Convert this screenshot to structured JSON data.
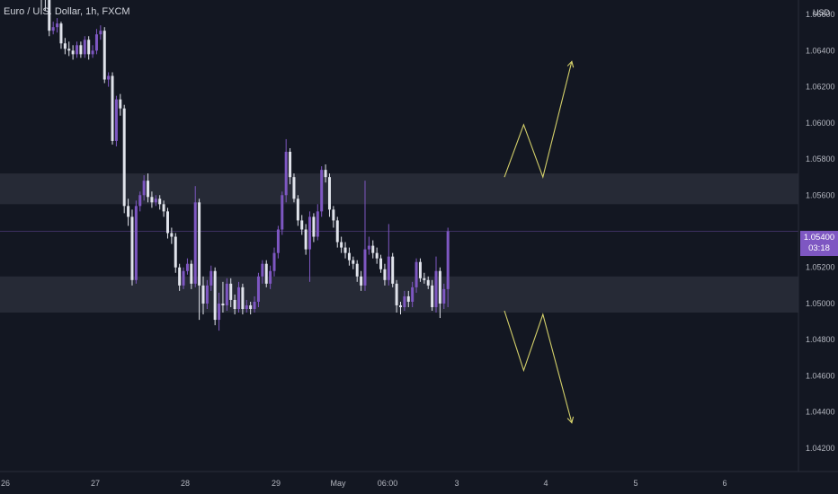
{
  "header": {
    "title": "Euro / U.S. Dollar, 1h, FXCM",
    "currency": "USD"
  },
  "colors": {
    "background": "#131722",
    "bull": "#7e57c2",
    "bear": "#e0e3eb",
    "zone": "#2a2e39",
    "projection": "#d4d06a",
    "axis_text": "#b2b5be"
  },
  "chart_data": {
    "type": "candlestick",
    "y_axis": {
      "ylim": [
        1.041,
        1.067
      ],
      "ticks": [
        "1.06600",
        "1.06400",
        "1.06200",
        "1.06000",
        "1.05800",
        "1.05600",
        "1.05200",
        "1.05000",
        "1.04800",
        "1.04600",
        "1.04400",
        "1.04200"
      ]
    },
    "x_axis": {
      "ticks": [
        "26",
        "27",
        "28",
        "29",
        "May",
        "06:00",
        "3",
        "4",
        "5",
        "6"
      ]
    },
    "current_price": {
      "value": "1.05400",
      "countdown": "03:18"
    },
    "zones": [
      {
        "top": 1.0572,
        "bottom": 1.0555
      },
      {
        "top": 1.0515,
        "bottom": 1.0495
      }
    ],
    "projections": [
      {
        "direction": "up",
        "points": [
          [
            0,
            1.057
          ],
          [
            4,
            1.0599
          ],
          [
            8,
            1.057
          ],
          [
            14,
            1.0634
          ]
        ]
      },
      {
        "direction": "down",
        "points": [
          [
            0,
            1.0496
          ],
          [
            4,
            1.0463
          ],
          [
            8,
            1.0494
          ],
          [
            14,
            1.0434
          ]
        ]
      }
    ],
    "candles": [
      [
        1.0671,
        1.0669,
        1.0675,
        1.066
      ],
      [
        1.0669,
        1.0668,
        1.0672,
        1.0662
      ],
      [
        1.0668,
        1.0651,
        1.067,
        1.0648
      ],
      [
        1.0651,
        1.0653,
        1.0656,
        1.0649
      ],
      [
        1.0653,
        1.0655,
        1.0658,
        1.065
      ],
      [
        1.0655,
        1.0644,
        1.0656,
        1.0641
      ],
      [
        1.0644,
        1.0641,
        1.0647,
        1.0638
      ],
      [
        1.0641,
        1.064,
        1.0645,
        1.0637
      ],
      [
        1.064,
        1.0638,
        1.0643,
        1.0635
      ],
      [
        1.0638,
        1.0643,
        1.0645,
        1.0636
      ],
      [
        1.0643,
        1.0638,
        1.0645,
        1.0636
      ],
      [
        1.0638,
        1.0646,
        1.0648,
        1.0636
      ],
      [
        1.0646,
        1.0638,
        1.0648,
        1.0635
      ],
      [
        1.0638,
        1.064,
        1.0643,
        1.0636
      ],
      [
        1.064,
        1.0649,
        1.0652,
        1.0638
      ],
      [
        1.0649,
        1.0651,
        1.0654,
        1.0646
      ],
      [
        1.0651,
        1.0624,
        1.0653,
        1.0622
      ],
      [
        1.0624,
        1.0626,
        1.0628,
        1.062
      ],
      [
        1.0626,
        1.059,
        1.0628,
        1.0588
      ],
      [
        1.059,
        1.0613,
        1.0615,
        1.0587
      ],
      [
        1.0613,
        1.0608,
        1.0616,
        1.0604
      ],
      [
        1.0608,
        1.0554,
        1.061,
        1.055
      ],
      [
        1.0554,
        1.0548,
        1.0558,
        1.0543
      ],
      [
        1.0548,
        1.0513,
        1.0552,
        1.051
      ],
      [
        1.0513,
        1.0554,
        1.0557,
        1.0511
      ],
      [
        1.0554,
        1.056,
        1.0562,
        1.0551
      ],
      [
        1.056,
        1.0568,
        1.0571,
        1.0557
      ],
      [
        1.0568,
        1.0559,
        1.0572,
        1.0556
      ],
      [
        1.0559,
        1.0556,
        1.0562,
        1.0553
      ],
      [
        1.0556,
        1.0558,
        1.056,
        1.0554
      ],
      [
        1.0558,
        1.0555,
        1.056,
        1.0552
      ],
      [
        1.0555,
        1.0551,
        1.0557,
        1.0548
      ],
      [
        1.0551,
        1.0539,
        1.0553,
        1.0536
      ],
      [
        1.0539,
        1.0537,
        1.0542,
        1.0533
      ],
      [
        1.0537,
        1.052,
        1.0539,
        1.0517
      ],
      [
        1.052,
        1.051,
        1.0522,
        1.0507
      ],
      [
        1.051,
        1.0518,
        1.052,
        1.0508
      ],
      [
        1.0518,
        1.0522,
        1.0525,
        1.0516
      ],
      [
        1.0522,
        1.0511,
        1.0524,
        1.0508
      ],
      [
        1.0511,
        1.0556,
        1.0565,
        1.0509
      ],
      [
        1.0556,
        1.051,
        1.0558,
        1.0491
      ],
      [
        1.051,
        1.05,
        1.0515,
        1.0494
      ],
      [
        1.05,
        1.051,
        1.0513,
        1.0497
      ],
      [
        1.051,
        1.0518,
        1.0521,
        1.0507
      ],
      [
        1.0518,
        1.0491,
        1.052,
        1.0488
      ],
      [
        1.0491,
        1.05,
        1.0506,
        1.0485
      ],
      [
        1.05,
        1.0499,
        1.0512,
        1.0495
      ],
      [
        1.0499,
        1.0511,
        1.0514,
        1.0496
      ],
      [
        1.0511,
        1.0502,
        1.0514,
        1.0498
      ],
      [
        1.0502,
        1.0497,
        1.0505,
        1.0494
      ],
      [
        1.0497,
        1.0509,
        1.0512,
        1.0495
      ],
      [
        1.0509,
        1.0497,
        1.0511,
        1.0494
      ],
      [
        1.0497,
        1.0499,
        1.0502,
        1.0495
      ],
      [
        1.0499,
        1.0497,
        1.0501,
        1.0494
      ],
      [
        1.0497,
        1.0501,
        1.0504,
        1.0495
      ],
      [
        1.0501,
        1.0515,
        1.0517,
        1.0498
      ],
      [
        1.0515,
        1.0522,
        1.0524,
        1.0511
      ],
      [
        1.0522,
        1.0511,
        1.0524,
        1.0509
      ],
      [
        1.0511,
        1.0518,
        1.0521,
        1.0508
      ],
      [
        1.0518,
        1.0528,
        1.0531,
        1.0515
      ],
      [
        1.0528,
        1.0541,
        1.0543,
        1.0525
      ],
      [
        1.0541,
        1.056,
        1.0562,
        1.0538
      ],
      [
        1.056,
        1.0584,
        1.0591,
        1.0556
      ],
      [
        1.0584,
        1.057,
        1.0586,
        1.0566
      ],
      [
        1.057,
        1.0558,
        1.0572,
        1.0556
      ],
      [
        1.0558,
        1.0546,
        1.056,
        1.0543
      ],
      [
        1.0546,
        1.0541,
        1.0549,
        1.0538
      ],
      [
        1.0541,
        1.053,
        1.0544,
        1.0527
      ],
      [
        1.053,
        1.0548,
        1.0551,
        1.0512
      ],
      [
        1.0548,
        1.0537,
        1.055,
        1.0534
      ],
      [
        1.0537,
        1.0551,
        1.0555,
        1.0535
      ],
      [
        1.0551,
        1.0574,
        1.0576,
        1.0548
      ],
      [
        1.0574,
        1.057,
        1.0577,
        1.0567
      ],
      [
        1.057,
        1.0552,
        1.0572,
        1.0548
      ],
      [
        1.0552,
        1.0546,
        1.0554,
        1.0542
      ],
      [
        1.0546,
        1.0534,
        1.0548,
        1.0531
      ],
      [
        1.0534,
        1.0531,
        1.0537,
        1.0528
      ],
      [
        1.0531,
        1.0528,
        1.0534,
        1.0525
      ],
      [
        1.0528,
        1.0524,
        1.0531,
        1.0521
      ],
      [
        1.0524,
        1.0522,
        1.0526,
        1.0519
      ],
      [
        1.0522,
        1.0515,
        1.0524,
        1.0512
      ],
      [
        1.0515,
        1.051,
        1.0518,
        1.0507
      ],
      [
        1.051,
        1.053,
        1.0568,
        1.0507
      ],
      [
        1.053,
        1.0532,
        1.0537,
        1.0527
      ],
      [
        1.0532,
        1.0528,
        1.0535,
        1.0525
      ],
      [
        1.0528,
        1.0525,
        1.0531,
        1.0522
      ],
      [
        1.0525,
        1.0519,
        1.0527,
        1.0517
      ],
      [
        1.0519,
        1.0513,
        1.0522,
        1.051
      ],
      [
        1.0513,
        1.0526,
        1.0544,
        1.051
      ],
      [
        1.0526,
        1.0511,
        1.0528,
        1.0509
      ],
      [
        1.0511,
        1.0499,
        1.0513,
        1.0495
      ],
      [
        1.0499,
        1.0498,
        1.0501,
        1.0494
      ],
      [
        1.0498,
        1.0504,
        1.0507,
        1.0496
      ],
      [
        1.0504,
        1.0501,
        1.0507,
        1.0498
      ],
      [
        1.0501,
        1.0509,
        1.0512,
        1.0498
      ],
      [
        1.0509,
        1.0523,
        1.0525,
        1.0506
      ],
      [
        1.0523,
        1.0514,
        1.0525,
        1.0512
      ],
      [
        1.0514,
        1.0513,
        1.0517,
        1.0511
      ],
      [
        1.0513,
        1.051,
        1.0515,
        1.0508
      ],
      [
        1.051,
        1.0498,
        1.0513,
        1.0496
      ],
      [
        1.0498,
        1.0518,
        1.0526,
        1.0495
      ],
      [
        1.0518,
        1.05,
        1.052,
        1.0492
      ],
      [
        1.05,
        1.0508,
        1.0511,
        1.0497
      ],
      [
        1.0508,
        1.054,
        1.0542,
        1.0498
      ]
    ]
  }
}
